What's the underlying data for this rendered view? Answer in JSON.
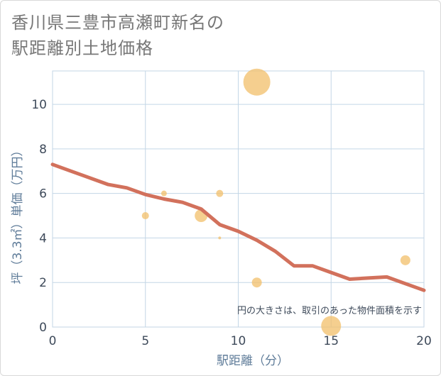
{
  "page": {
    "title_line1": "香川県三豊市高瀬町新名の",
    "title_line2": "駅距離別土地価格"
  },
  "chart_data": {
    "type": "scatter",
    "title": "香川県三豊市高瀬町新名の駅距離別土地価格",
    "xlabel": "駅距離（分）",
    "ylabel": "坪（3.3㎡）単価（万円）",
    "xlim": [
      0,
      20
    ],
    "ylim": [
      0,
      11.5
    ],
    "xticks": [
      0,
      5,
      10,
      15,
      20
    ],
    "yticks": [
      0,
      2,
      4,
      6,
      8,
      10
    ],
    "grid": true,
    "annotation": "円の大きさは、取引のあった物件面積を示す",
    "points": [
      {
        "x": 5,
        "y": 5.0,
        "size": 5
      },
      {
        "x": 6,
        "y": 6.0,
        "size": 4
      },
      {
        "x": 8,
        "y": 5.0,
        "size": 9
      },
      {
        "x": 9,
        "y": 6.0,
        "size": 5
      },
      {
        "x": 9,
        "y": 4.0,
        "size": 2
      },
      {
        "x": 11,
        "y": 11.0,
        "size": 19
      },
      {
        "x": 11,
        "y": 2.0,
        "size": 7
      },
      {
        "x": 15,
        "y": 0.05,
        "size": 14
      },
      {
        "x": 19,
        "y": 3.0,
        "size": 7
      }
    ],
    "trend": {
      "x": [
        0,
        1,
        2,
        3,
        4,
        5,
        6,
        7,
        8,
        9,
        10,
        11,
        12,
        13,
        14,
        15,
        16,
        17,
        18,
        19,
        20
      ],
      "y": [
        7.3,
        7.0,
        6.7,
        6.4,
        6.25,
        5.95,
        5.75,
        5.6,
        5.3,
        4.6,
        4.3,
        3.9,
        3.4,
        2.75,
        2.75,
        2.45,
        2.15,
        2.2,
        2.25,
        1.95,
        1.65
      ]
    },
    "colors": {
      "bubble": "#f1bf69",
      "trend": "#d2715c",
      "grid": "#c3d6e6",
      "axis_text": "#3e4a5a",
      "label_text": "#5f7c99"
    }
  }
}
